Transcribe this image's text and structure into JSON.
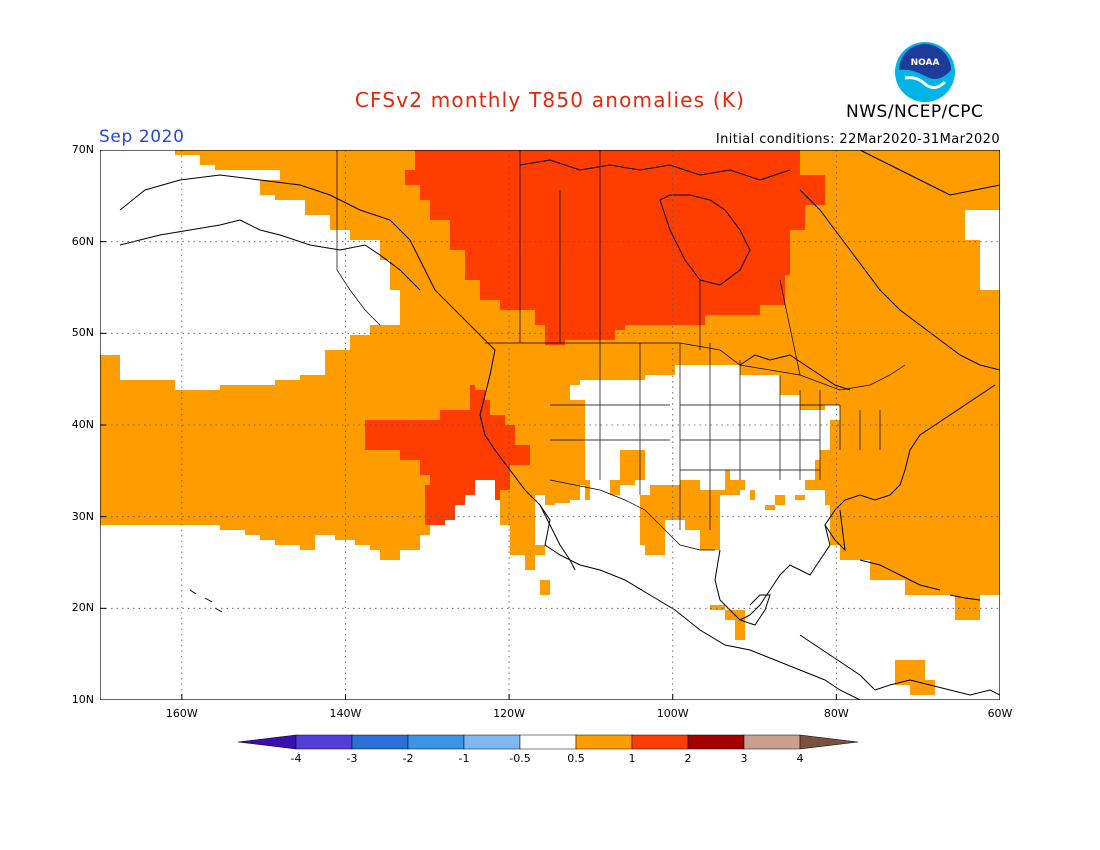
{
  "title": "CFSv2 monthly T850 anomalies (K)",
  "agency": "NWS/NCEP/CPC",
  "logo_text": "NOAA",
  "valid_month": "Sep 2020",
  "initial_conditions": "Initial conditions: 22Mar2020-31Mar2020",
  "map": {
    "lon_range": [
      -170,
      -60
    ],
    "lat_range": [
      10,
      70
    ],
    "lat_labels": [
      "70N",
      "60N",
      "50N",
      "40N",
      "30N",
      "20N",
      "10N"
    ],
    "lat_values": [
      70,
      60,
      50,
      40,
      30,
      20,
      10
    ],
    "lon_labels": [
      "160W",
      "140W",
      "120W",
      "100W",
      "80W",
      "60W"
    ],
    "lon_values": [
      -160,
      -140,
      -120,
      -100,
      -80,
      -60
    ],
    "gridlines": "dotted"
  },
  "legend": {
    "colors": [
      "#3a0fb0",
      "#5040d8",
      "#2d6fd9",
      "#3d93e8",
      "#7fb8f0",
      "#ffffff",
      "#ff9c00",
      "#ff3d00",
      "#a40000",
      "#c8a090",
      "#7a5040"
    ],
    "tick_labels": [
      "-4",
      "-3",
      "-2",
      "-1",
      "-0.5",
      "0.5",
      "1",
      "2",
      "3",
      "4"
    ]
  },
  "colors": {
    "title": "#e8250f",
    "month": "#2746e4",
    "anomaly_0_5_to_1": "#ff9c00",
    "anomaly_1_to_2": "#ff3d00"
  }
}
